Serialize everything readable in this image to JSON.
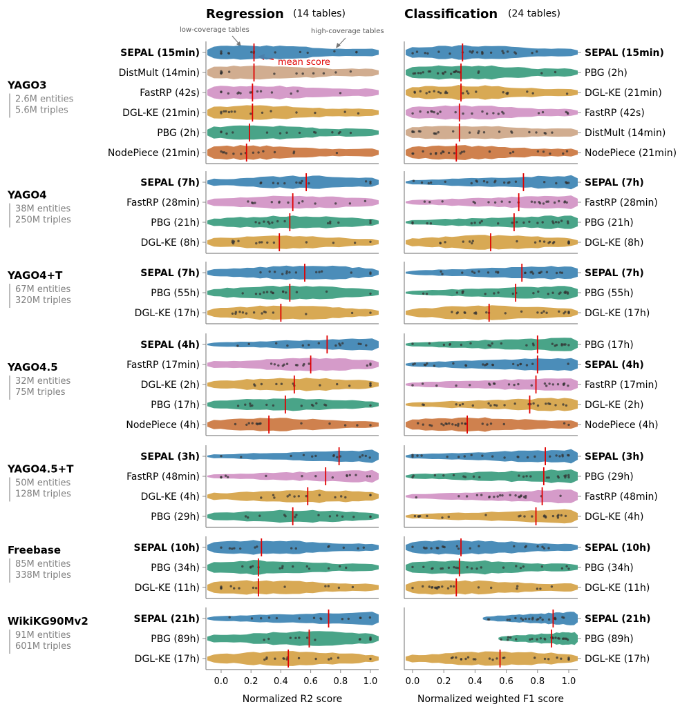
{
  "chart_data": {
    "type": "violin",
    "panels": {
      "regression": {
        "title": "Regression",
        "subtitle": "(14 tables)",
        "xlabel": "Normalized R2 score",
        "xlim": [
          -0.1,
          1.05
        ],
        "xticks": [
          "0.0",
          "0.2",
          "0.4",
          "0.6",
          "0.8",
          "1.0"
        ]
      },
      "classification": {
        "title": "Classification",
        "subtitle": "(24 tables)",
        "xlabel": "Normalized weighted F1 score",
        "xlim": [
          -0.05,
          1.05
        ],
        "xticks": [
          "0.0",
          "0.2",
          "0.4",
          "0.6",
          "0.8",
          "1.0"
        ]
      }
    },
    "annotations": {
      "low_coverage": "low-coverage tables",
      "high_coverage": "high-coverage tables",
      "mean_score": "mean score"
    },
    "method_colors": {
      "SEPAL": "#4187b5",
      "DistMult": "#cfa98a",
      "FastRP": "#d396c6",
      "DGL-KE": "#d6a44b",
      "PBG": "#3f9f82",
      "NodePiece": "#cc7a45"
    },
    "groups": [
      {
        "name": "YAGO3",
        "entities": "2.6M entities",
        "triples": "5.6M triples",
        "regression": [
          {
            "method": "SEPAL",
            "label": "SEPAL (15min)",
            "mean": 0.22,
            "bold": true
          },
          {
            "method": "DistMult",
            "label": "DistMult (14min)",
            "mean": 0.22
          },
          {
            "method": "FastRP",
            "label": "FastRP (42s)",
            "mean": 0.21
          },
          {
            "method": "DGL-KE",
            "label": "DGL-KE (21min)",
            "mean": 0.21
          },
          {
            "method": "PBG",
            "label": "PBG (2h)",
            "mean": 0.19
          },
          {
            "method": "NodePiece",
            "label": "NodePiece (21min)",
            "mean": 0.17
          }
        ],
        "classification": [
          {
            "method": "SEPAL",
            "label": "SEPAL (15min)",
            "mean": 0.32,
            "bold": true
          },
          {
            "method": "PBG",
            "label": "PBG (2h)",
            "mean": 0.31
          },
          {
            "method": "DGL-KE",
            "label": "DGL-KE (21min)",
            "mean": 0.31
          },
          {
            "method": "FastRP",
            "label": "FastRP (42s)",
            "mean": 0.3
          },
          {
            "method": "DistMult",
            "label": "DistMult (14min)",
            "mean": 0.3
          },
          {
            "method": "NodePiece",
            "label": "NodePiece (21min)",
            "mean": 0.28
          }
        ]
      },
      {
        "name": "YAGO4",
        "entities": "38M entities",
        "triples": "250M triples",
        "regression": [
          {
            "method": "SEPAL",
            "label": "SEPAL (7h)",
            "mean": 0.57,
            "bold": true
          },
          {
            "method": "FastRP",
            "label": "FastRP (28min)",
            "mean": 0.48
          },
          {
            "method": "PBG",
            "label": "PBG (21h)",
            "mean": 0.46
          },
          {
            "method": "DGL-KE",
            "label": "DGL-KE (8h)",
            "mean": 0.39
          }
        ],
        "classification": [
          {
            "method": "SEPAL",
            "label": "SEPAL (7h)",
            "mean": 0.71,
            "bold": true
          },
          {
            "method": "FastRP",
            "label": "FastRP (28min)",
            "mean": 0.68
          },
          {
            "method": "PBG",
            "label": "PBG (21h)",
            "mean": 0.65
          },
          {
            "method": "DGL-KE",
            "label": "DGL-KE (8h)",
            "mean": 0.5
          }
        ]
      },
      {
        "name": "YAGO4+T",
        "entities": "67M entities",
        "triples": "320M triples",
        "regression": [
          {
            "method": "SEPAL",
            "label": "SEPAL (7h)",
            "mean": 0.56,
            "bold": true
          },
          {
            "method": "PBG",
            "label": "PBG (55h)",
            "mean": 0.46
          },
          {
            "method": "DGL-KE",
            "label": "DGL-KE (17h)",
            "mean": 0.4
          }
        ],
        "classification": [
          {
            "method": "SEPAL",
            "label": "SEPAL (7h)",
            "mean": 0.7,
            "bold": true
          },
          {
            "method": "PBG",
            "label": "PBG (55h)",
            "mean": 0.66
          },
          {
            "method": "DGL-KE",
            "label": "DGL-KE (17h)",
            "mean": 0.49
          }
        ]
      },
      {
        "name": "YAGO4.5",
        "entities": "32M entities",
        "triples": "75M triples",
        "regression": [
          {
            "method": "SEPAL",
            "label": "SEPAL (4h)",
            "mean": 0.71,
            "bold": true
          },
          {
            "method": "FastRP",
            "label": "FastRP (17min)",
            "mean": 0.6
          },
          {
            "method": "DGL-KE",
            "label": "DGL-KE (2h)",
            "mean": 0.49
          },
          {
            "method": "PBG",
            "label": "PBG (17h)",
            "mean": 0.43
          },
          {
            "method": "NodePiece",
            "label": "NodePiece (4h)",
            "mean": 0.32
          }
        ],
        "classification": [
          {
            "method": "PBG",
            "label": "PBG (17h)",
            "mean": 0.8
          },
          {
            "method": "SEPAL",
            "label": "SEPAL (4h)",
            "mean": 0.8,
            "bold": true
          },
          {
            "method": "FastRP",
            "label": "FastRP (17min)",
            "mean": 0.79
          },
          {
            "method": "DGL-KE",
            "label": "DGL-KE (2h)",
            "mean": 0.75
          },
          {
            "method": "NodePiece",
            "label": "NodePiece (4h)",
            "mean": 0.35
          }
        ]
      },
      {
        "name": "YAGO4.5+T",
        "entities": "50M entities",
        "triples": "128M triples",
        "regression": [
          {
            "method": "SEPAL",
            "label": "SEPAL (3h)",
            "mean": 0.79,
            "bold": true
          },
          {
            "method": "FastRP",
            "label": "FastRP (48min)",
            "mean": 0.7
          },
          {
            "method": "DGL-KE",
            "label": "DGL-KE (4h)",
            "mean": 0.58
          },
          {
            "method": "PBG",
            "label": "PBG (29h)",
            "mean": 0.48
          }
        ],
        "classification": [
          {
            "method": "SEPAL",
            "label": "SEPAL (3h)",
            "mean": 0.85,
            "bold": true
          },
          {
            "method": "PBG",
            "label": "PBG (29h)",
            "mean": 0.84
          },
          {
            "method": "FastRP",
            "label": "FastRP (48min)",
            "mean": 0.83
          },
          {
            "method": "DGL-KE",
            "label": "DGL-KE (4h)",
            "mean": 0.79
          }
        ]
      },
      {
        "name": "Freebase",
        "entities": "85M entities",
        "triples": "338M triples",
        "regression": [
          {
            "method": "SEPAL",
            "label": "SEPAL (10h)",
            "mean": 0.27,
            "bold": true
          },
          {
            "method": "PBG",
            "label": "PBG (34h)",
            "mean": 0.25
          },
          {
            "method": "DGL-KE",
            "label": "DGL-KE (11h)",
            "mean": 0.25
          }
        ],
        "classification": [
          {
            "method": "SEPAL",
            "label": "SEPAL (10h)",
            "mean": 0.31,
            "bold": true
          },
          {
            "method": "PBG",
            "label": "PBG (34h)",
            "mean": 0.3
          },
          {
            "method": "DGL-KE",
            "label": "DGL-KE (11h)",
            "mean": 0.28
          }
        ]
      },
      {
        "name": "WikiKG90Mv2",
        "entities": "91M entities",
        "triples": "601M triples",
        "regression": [
          {
            "method": "SEPAL",
            "label": "SEPAL (21h)",
            "mean": 0.72,
            "bold": true
          },
          {
            "method": "PBG",
            "label": "PBG (89h)",
            "mean": 0.59
          },
          {
            "method": "DGL-KE",
            "label": "DGL-KE (17h)",
            "mean": 0.45
          }
        ],
        "classification": [
          {
            "method": "SEPAL",
            "label": "SEPAL (21h)",
            "mean": 0.9,
            "bold": true
          },
          {
            "method": "PBG",
            "label": "PBG (89h)",
            "mean": 0.89
          },
          {
            "method": "DGL-KE",
            "label": "DGL-KE (17h)",
            "mean": 0.56
          }
        ]
      }
    ]
  }
}
